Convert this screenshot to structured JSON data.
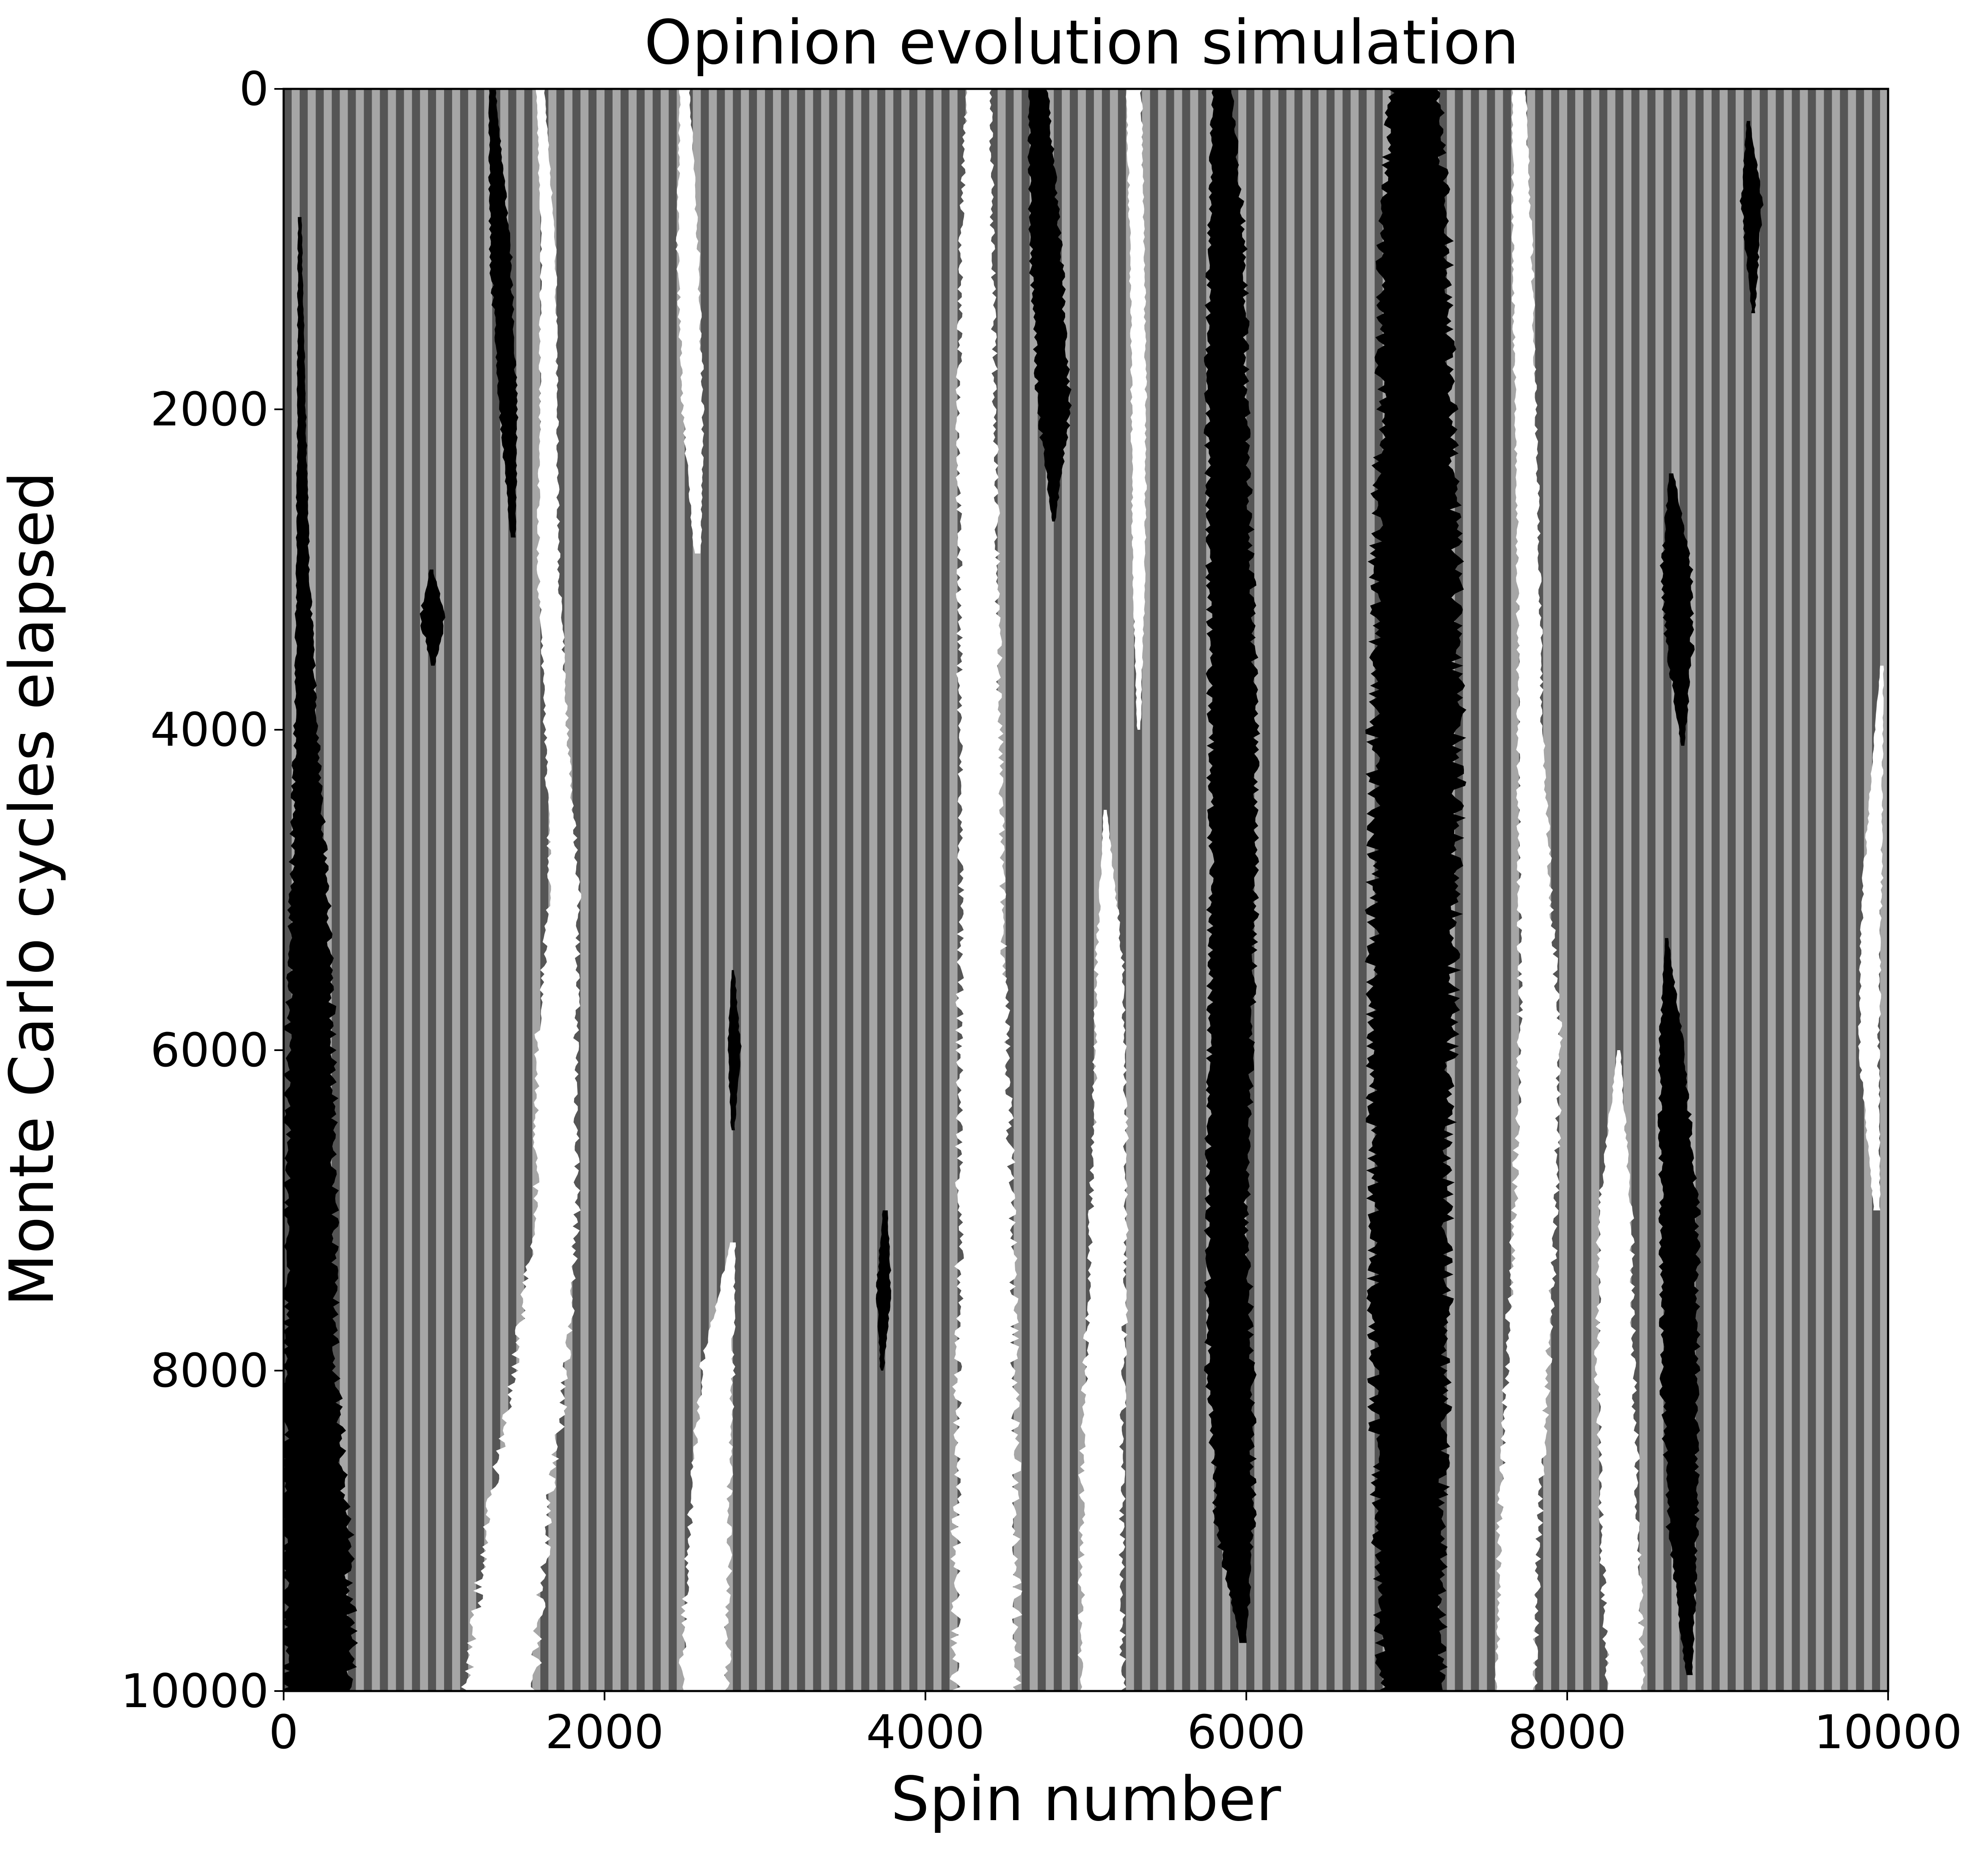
{
  "chart_data": {
    "type": "heatmap",
    "title": "Opinion evolution simulation",
    "xlabel": "Spin number",
    "ylabel": "Monte Carlo cycles elapsed",
    "xlim": [
      0,
      10000
    ],
    "ylim": [
      10000,
      0
    ],
    "y_axis_inverted": true,
    "xticks": [
      "0",
      "2000",
      "4000",
      "6000",
      "8000",
      "10000"
    ],
    "yticks": [
      "0",
      "2000",
      "4000",
      "6000",
      "8000",
      "10000"
    ],
    "grid": false,
    "legend": "none",
    "colormap": [
      "#000000",
      "#555555",
      "#a6a6a6",
      "#ffffff"
    ],
    "background_pattern": {
      "description_values": "alternating spin stripes",
      "stripe_period_spins": 100,
      "colors": [
        "#555555",
        "#a6a6a6"
      ]
    },
    "white_domains": [
      {
        "profile": [
          [
            0,
            1600
          ],
          [
            1000,
            1650
          ],
          [
            2000,
            1650
          ],
          [
            3000,
            1650
          ],
          [
            4000,
            1700
          ],
          [
            5000,
            1750
          ],
          [
            6000,
            1700
          ],
          [
            7000,
            1700
          ],
          [
            8000,
            1600
          ],
          [
            9000,
            1450
          ],
          [
            10000,
            1350
          ]
        ],
        "width": [
          [
            0,
            50
          ],
          [
            1000,
            90
          ],
          [
            2000,
            110
          ],
          [
            3000,
            130
          ],
          [
            4000,
            140
          ],
          [
            5000,
            180
          ],
          [
            6000,
            250
          ],
          [
            7000,
            260
          ],
          [
            8000,
            330
          ],
          [
            9000,
            380
          ],
          [
            10000,
            420
          ]
        ]
      },
      {
        "profile": [
          [
            0,
            2500
          ],
          [
            1000,
            2520
          ],
          [
            2000,
            2550
          ],
          [
            2900,
            2580
          ]
        ],
        "width": [
          [
            0,
            60
          ],
          [
            1000,
            130
          ],
          [
            2000,
            130
          ],
          [
            2900,
            40
          ]
        ]
      },
      {
        "profile": [
          [
            7200,
            2800
          ],
          [
            8000,
            2700
          ],
          [
            9000,
            2650
          ],
          [
            10000,
            2620
          ]
        ],
        "width": [
          [
            7200,
            30
          ],
          [
            8000,
            200
          ],
          [
            9000,
            250
          ],
          [
            10000,
            290
          ]
        ]
      },
      {
        "profile": [
          [
            0,
            4330
          ],
          [
            1000,
            4320
          ],
          [
            2000,
            4320
          ],
          [
            3000,
            4330
          ],
          [
            4000,
            4340
          ],
          [
            5000,
            4350
          ],
          [
            6000,
            4360
          ],
          [
            7000,
            4380
          ],
          [
            8000,
            4380
          ],
          [
            9000,
            4380
          ],
          [
            10000,
            4380
          ]
        ],
        "width": [
          [
            0,
            150
          ],
          [
            1000,
            200
          ],
          [
            2000,
            230
          ],
          [
            3000,
            240
          ],
          [
            4000,
            250
          ],
          [
            5000,
            260
          ],
          [
            6000,
            300
          ],
          [
            7000,
            330
          ],
          [
            8000,
            360
          ],
          [
            9000,
            380
          ],
          [
            10000,
            390
          ]
        ]
      },
      {
        "profile": [
          [
            4500,
            5120
          ],
          [
            5500,
            5150
          ],
          [
            6500,
            5150
          ],
          [
            7500,
            5130
          ],
          [
            8500,
            5100
          ],
          [
            10000,
            5100
          ]
        ],
        "width": [
          [
            4500,
            20
          ],
          [
            5500,
            170
          ],
          [
            6500,
            200
          ],
          [
            7500,
            230
          ],
          [
            8500,
            250
          ],
          [
            10000,
            260
          ]
        ]
      },
      {
        "profile": [
          [
            0,
            5300
          ],
          [
            1000,
            5320
          ],
          [
            2000,
            5330
          ],
          [
            3000,
            5330
          ],
          [
            4000,
            5330
          ]
        ],
        "width": [
          [
            0,
            90
          ],
          [
            1000,
            90
          ],
          [
            2000,
            90
          ],
          [
            3000,
            80
          ],
          [
            4000,
            20
          ]
        ]
      },
      {
        "profile": [
          [
            0,
            7700
          ],
          [
            1000,
            7720
          ],
          [
            2000,
            7740
          ],
          [
            3000,
            7760
          ],
          [
            4000,
            7770
          ],
          [
            5000,
            7800
          ],
          [
            6000,
            7830
          ],
          [
            7000,
            7800
          ],
          [
            8000,
            7750
          ],
          [
            9000,
            7700
          ],
          [
            10000,
            7680
          ]
        ],
        "width": [
          [
            0,
            80
          ],
          [
            1000,
            120
          ],
          [
            2000,
            130
          ],
          [
            3000,
            140
          ],
          [
            4000,
            150
          ],
          [
            5000,
            200
          ],
          [
            6000,
            250
          ],
          [
            7000,
            260
          ],
          [
            8000,
            260
          ],
          [
            9000,
            250
          ],
          [
            10000,
            230
          ]
        ]
      },
      {
        "profile": [
          [
            6000,
            8320
          ],
          [
            7000,
            8300
          ],
          [
            8000,
            8300
          ],
          [
            9000,
            8330
          ],
          [
            10000,
            8360
          ]
        ],
        "width": [
          [
            6000,
            20
          ],
          [
            7000,
            200
          ],
          [
            8000,
            230
          ],
          [
            9000,
            230
          ],
          [
            10000,
            220
          ]
        ]
      },
      {
        "profile": [
          [
            3600,
            9960
          ],
          [
            5000,
            9900
          ],
          [
            6000,
            9880
          ],
          [
            7000,
            9930
          ]
        ],
        "width": [
          [
            3600,
            20
          ],
          [
            5000,
            120
          ],
          [
            6000,
            120
          ],
          [
            7000,
            40
          ]
        ]
      }
    ],
    "black_domains": [
      {
        "profile": [
          [
            800,
            100
          ],
          [
            3000,
            120
          ],
          [
            4000,
            140
          ],
          [
            5000,
            160
          ],
          [
            6000,
            170
          ],
          [
            7000,
            170
          ],
          [
            8000,
            170
          ],
          [
            9000,
            200
          ],
          [
            10000,
            220
          ]
        ],
        "width": [
          [
            800,
            20
          ],
          [
            3000,
            80
          ],
          [
            4000,
            140
          ],
          [
            5000,
            230
          ],
          [
            6000,
            290
          ],
          [
            7000,
            300
          ],
          [
            8000,
            320
          ],
          [
            9000,
            410
          ],
          [
            10000,
            430
          ]
        ]
      },
      {
        "profile": [
          [
            0,
            1300
          ],
          [
            1000,
            1350
          ],
          [
            2000,
            1400
          ],
          [
            2800,
            1430
          ]
        ],
        "width": [
          [
            0,
            40
          ],
          [
            1000,
            130
          ],
          [
            2000,
            110
          ],
          [
            2800,
            30
          ]
        ]
      },
      {
        "profile": [
          [
            3000,
            920
          ],
          [
            3300,
            930
          ],
          [
            3600,
            930
          ]
        ],
        "width": [
          [
            3000,
            20
          ],
          [
            3300,
            160
          ],
          [
            3600,
            20
          ]
        ]
      },
      {
        "profile": [
          [
            0,
            4700
          ],
          [
            1000,
            4750
          ],
          [
            2000,
            4800
          ],
          [
            2700,
            4800
          ]
        ],
        "width": [
          [
            0,
            120
          ],
          [
            1000,
            190
          ],
          [
            2000,
            200
          ],
          [
            2700,
            20
          ]
        ]
      },
      {
        "profile": [
          [
            0,
            5850
          ],
          [
            1000,
            5880
          ],
          [
            2000,
            5880
          ],
          [
            3000,
            5900
          ],
          [
            4000,
            5920
          ],
          [
            5000,
            5920
          ],
          [
            6000,
            5900
          ],
          [
            7000,
            5880
          ],
          [
            8000,
            5900
          ],
          [
            9000,
            5930
          ],
          [
            9700,
            5980
          ]
        ],
        "width": [
          [
            0,
            120
          ],
          [
            1000,
            230
          ],
          [
            2000,
            250
          ],
          [
            3000,
            270
          ],
          [
            4000,
            290
          ],
          [
            5000,
            290
          ],
          [
            6000,
            260
          ],
          [
            7000,
            250
          ],
          [
            8000,
            280
          ],
          [
            9000,
            230
          ],
          [
            9700,
            40
          ]
        ]
      },
      {
        "profile": [
          [
            0,
            7050
          ],
          [
            1000,
            7050
          ],
          [
            2000,
            7060
          ],
          [
            3000,
            7060
          ],
          [
            4000,
            7060
          ],
          [
            5000,
            7050
          ],
          [
            6000,
            7030
          ],
          [
            7000,
            7020
          ],
          [
            8000,
            7020
          ],
          [
            9000,
            7020
          ],
          [
            10000,
            7030
          ]
        ],
        "width": [
          [
            0,
            300
          ],
          [
            1000,
            420
          ],
          [
            2000,
            450
          ],
          [
            3000,
            520
          ],
          [
            4000,
            540
          ],
          [
            5000,
            530
          ],
          [
            6000,
            500
          ],
          [
            7000,
            470
          ],
          [
            8000,
            460
          ],
          [
            9000,
            420
          ],
          [
            10000,
            380
          ]
        ]
      },
      {
        "profile": [
          [
            5500,
            2800
          ],
          [
            6000,
            2810
          ],
          [
            6500,
            2800
          ]
        ],
        "width": [
          [
            5500,
            20
          ],
          [
            6000,
            80
          ],
          [
            6500,
            20
          ]
        ]
      },
      {
        "profile": [
          [
            7000,
            3750
          ],
          [
            7500,
            3740
          ],
          [
            8000,
            3730
          ]
        ],
        "width": [
          [
            7000,
            30
          ],
          [
            7500,
            90
          ],
          [
            8000,
            20
          ]
        ]
      },
      {
        "profile": [
          [
            5300,
            8620
          ],
          [
            6000,
            8650
          ],
          [
            7000,
            8700
          ],
          [
            8000,
            8700
          ],
          [
            9000,
            8720
          ],
          [
            9900,
            8760
          ]
        ],
        "width": [
          [
            5300,
            20
          ],
          [
            6000,
            150
          ],
          [
            7000,
            230
          ],
          [
            8000,
            220
          ],
          [
            9000,
            180
          ],
          [
            9900,
            40
          ]
        ]
      },
      {
        "profile": [
          [
            2400,
            8650
          ],
          [
            3000,
            8680
          ],
          [
            3500,
            8700
          ],
          [
            4100,
            8720
          ]
        ],
        "width": [
          [
            2400,
            30
          ],
          [
            3000,
            180
          ],
          [
            3500,
            160
          ],
          [
            4100,
            20
          ]
        ]
      },
      {
        "profile": [
          [
            200,
            9130
          ],
          [
            700,
            9150
          ],
          [
            1400,
            9160
          ]
        ],
        "width": [
          [
            200,
            20
          ],
          [
            700,
            130
          ],
          [
            1400,
            20
          ]
        ]
      }
    ]
  }
}
